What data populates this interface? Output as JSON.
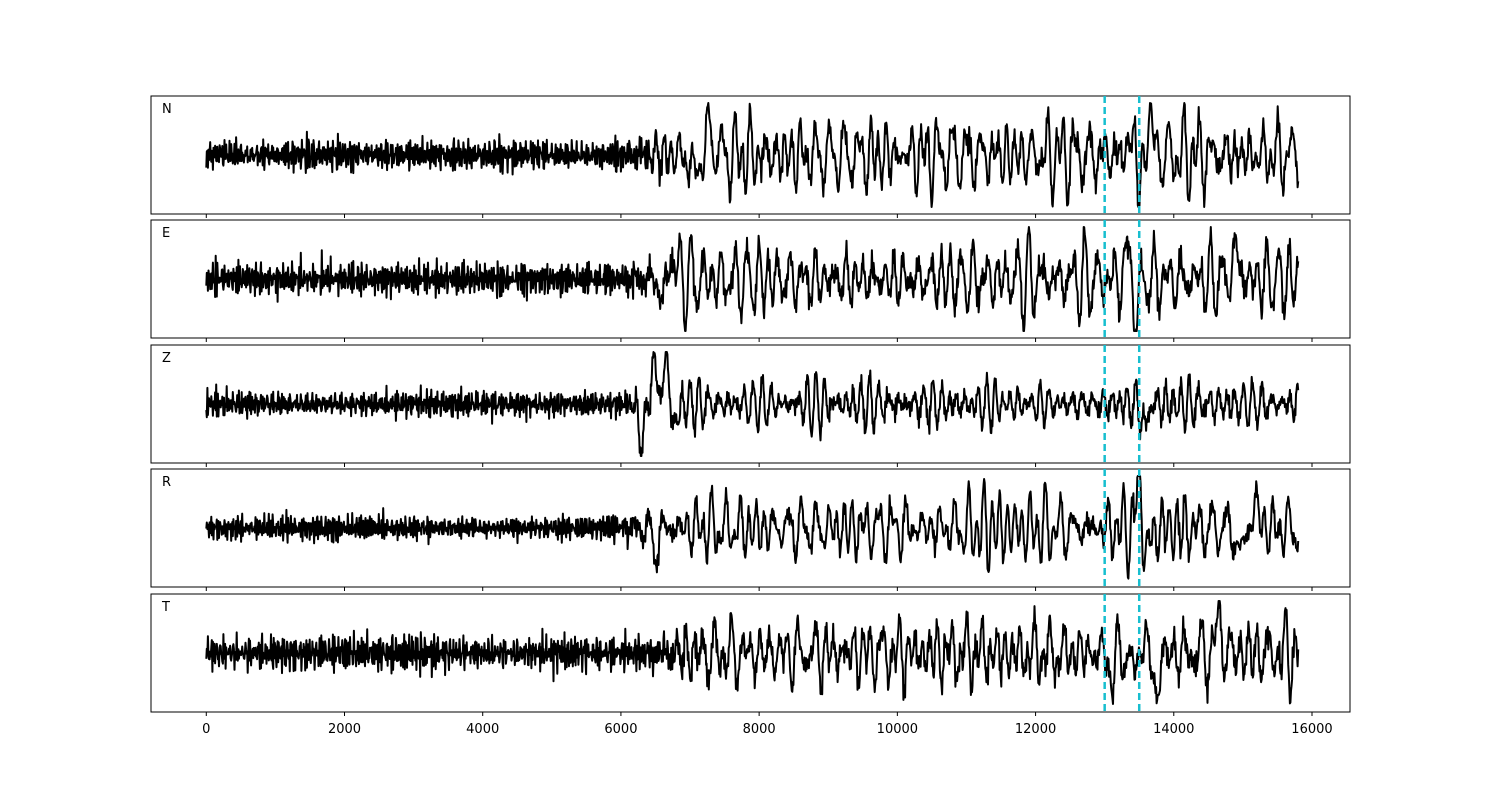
{
  "chart_data": {
    "type": "line",
    "title": "",
    "xlabel": "",
    "ylabel": "",
    "xlim": [
      -800,
      16550
    ],
    "x_ticks": [
      0,
      2000,
      4000,
      6000,
      8000,
      10000,
      12000,
      14000,
      16000
    ],
    "x_tick_labels": [
      "0",
      "2000",
      "4000",
      "6000",
      "8000",
      "10000",
      "12000",
      "14000",
      "16000"
    ],
    "sample_range": [
      0,
      15800
    ],
    "grid": false,
    "picks": [
      13000,
      13500
    ],
    "pick_color": "#17becf",
    "trace_color": "#000000",
    "panels": [
      {
        "label": "N",
        "noise": 0.3,
        "onset": 6400,
        "coda": 0.62,
        "peaks": [
          [
            13500,
            -1.0
          ],
          [
            13420,
            0.78
          ],
          [
            13650,
            0.95
          ],
          [
            7050,
            -0.55
          ],
          [
            7300,
            0.62
          ]
        ]
      },
      {
        "label": "E",
        "noise": 0.3,
        "onset": 6400,
        "coda": 0.6,
        "peaks": [
          [
            13450,
            -1.0
          ],
          [
            13350,
            0.78
          ],
          [
            6600,
            -0.45
          ],
          [
            6750,
            0.62
          ],
          [
            14900,
            0.72
          ]
        ]
      },
      {
        "label": "Z",
        "noise": 0.25,
        "onset": 6250,
        "coda": 0.42,
        "peaks": [
          [
            6300,
            -0.92
          ],
          [
            6480,
            0.95
          ],
          [
            6650,
            1.0
          ],
          [
            6780,
            -0.55
          ],
          [
            13580,
            -0.55
          ]
        ]
      },
      {
        "label": "R",
        "noise": 0.22,
        "onset": 6300,
        "coda": 0.58,
        "peaks": [
          [
            13500,
            1.0
          ],
          [
            13620,
            -0.72
          ],
          [
            14950,
            -0.72
          ],
          [
            15200,
            0.58
          ],
          [
            6500,
            -0.55
          ]
        ]
      },
      {
        "label": "T",
        "noise": 0.32,
        "onset": 6700,
        "coda": 0.6,
        "peaks": [
          [
            13500,
            0.78
          ],
          [
            13450,
            -0.95
          ],
          [
            13750,
            -1.0
          ],
          [
            14650,
            0.78
          ],
          [
            13100,
            -0.55
          ]
        ]
      }
    ]
  }
}
